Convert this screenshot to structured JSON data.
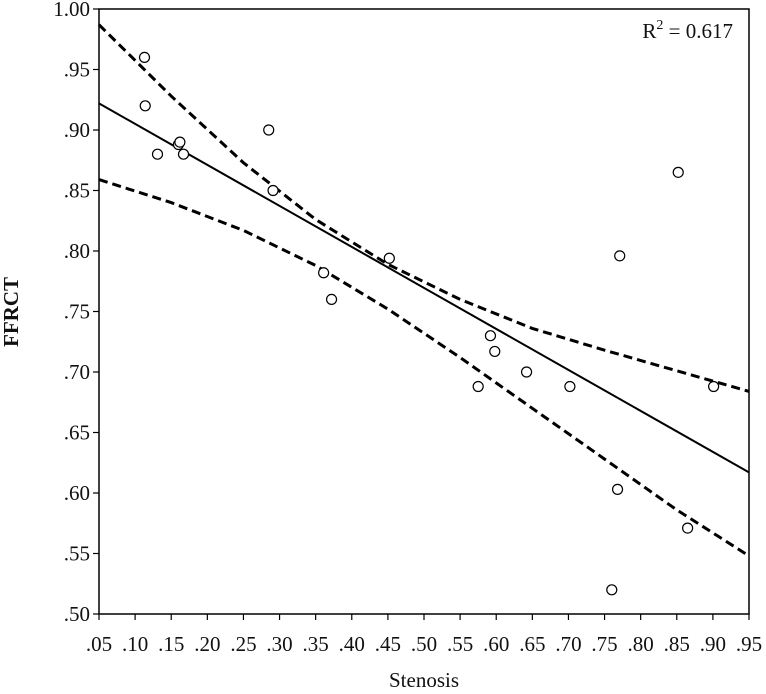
{
  "chart_data": {
    "type": "scatter",
    "xlabel": "Stenosis",
    "ylabel": "FFRCT",
    "xlim": [
      0.05,
      0.95
    ],
    "ylim": [
      0.5,
      1.0
    ],
    "x_ticks": [
      0.05,
      0.1,
      0.15,
      0.2,
      0.25,
      0.3,
      0.35,
      0.4,
      0.45,
      0.5,
      0.55,
      0.6,
      0.65,
      0.7,
      0.75,
      0.8,
      0.85,
      0.9,
      0.95
    ],
    "x_tick_labels": [
      ".05",
      ".10",
      ".15",
      ".20",
      ".25",
      ".30",
      ".35",
      ".40",
      ".45",
      ".50",
      ".55",
      ".60",
      ".65",
      ".70",
      ".75",
      ".80",
      ".85",
      ".90",
      ".95"
    ],
    "y_ticks": [
      0.5,
      0.55,
      0.6,
      0.65,
      0.7,
      0.75,
      0.8,
      0.85,
      0.9,
      0.95,
      1.0
    ],
    "y_tick_labels": [
      ".50",
      ".55",
      ".60",
      ".65",
      ".70",
      ".75",
      ".80",
      ".85",
      ".90",
      ".95",
      "1.00"
    ],
    "grid": false,
    "annotation": {
      "base": "R",
      "superscript": "2",
      "suffix": " = 0.617",
      "position": "top-right"
    },
    "points": [
      {
        "x": 0.113,
        "y": 0.96
      },
      {
        "x": 0.114,
        "y": 0.92
      },
      {
        "x": 0.131,
        "y": 0.88
      },
      {
        "x": 0.16,
        "y": 0.888
      },
      {
        "x": 0.162,
        "y": 0.89
      },
      {
        "x": 0.167,
        "y": 0.88
      },
      {
        "x": 0.285,
        "y": 0.9
      },
      {
        "x": 0.291,
        "y": 0.85
      },
      {
        "x": 0.361,
        "y": 0.782
      },
      {
        "x": 0.372,
        "y": 0.76
      },
      {
        "x": 0.452,
        "y": 0.794
      },
      {
        "x": 0.575,
        "y": 0.688
      },
      {
        "x": 0.592,
        "y": 0.73
      },
      {
        "x": 0.598,
        "y": 0.717
      },
      {
        "x": 0.642,
        "y": 0.7
      },
      {
        "x": 0.702,
        "y": 0.688
      },
      {
        "x": 0.76,
        "y": 0.52
      },
      {
        "x": 0.768,
        "y": 0.603
      },
      {
        "x": 0.771,
        "y": 0.796
      },
      {
        "x": 0.852,
        "y": 0.865
      },
      {
        "x": 0.865,
        "y": 0.571
      },
      {
        "x": 0.901,
        "y": 0.688
      }
    ],
    "fit_line": {
      "x": [
        0.05,
        0.95
      ],
      "y": [
        0.922,
        0.617
      ]
    },
    "ci_upper": {
      "x": [
        0.05,
        0.15,
        0.25,
        0.35,
        0.45,
        0.55,
        0.65,
        0.75,
        0.85,
        0.95
      ],
      "y": [
        0.987,
        0.928,
        0.873,
        0.826,
        0.789,
        0.76,
        0.736,
        0.718,
        0.701,
        0.684
      ]
    },
    "ci_lower": {
      "x": [
        0.05,
        0.15,
        0.25,
        0.35,
        0.45,
        0.55,
        0.65,
        0.75,
        0.85,
        0.95
      ],
      "y": [
        0.859,
        0.84,
        0.817,
        0.788,
        0.752,
        0.712,
        0.67,
        0.628,
        0.586,
        0.548
      ]
    }
  }
}
